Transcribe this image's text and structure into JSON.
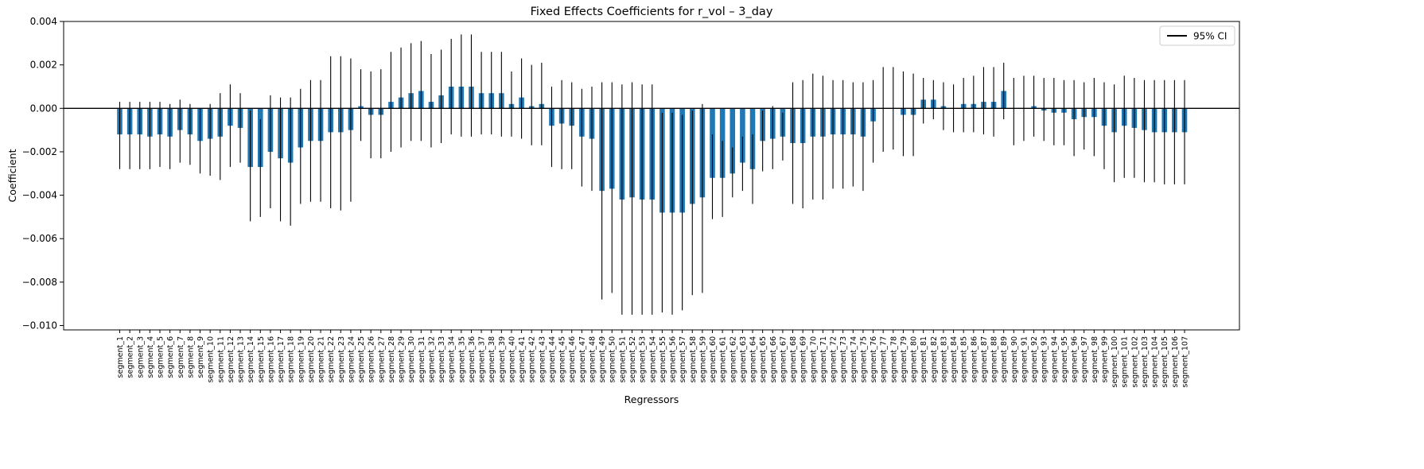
{
  "chart_data": {
    "type": "bar",
    "title": "Fixed Effects Coefficients for r_vol – 3_day",
    "xlabel": "Regressors",
    "ylabel": "Coefficient",
    "ylim": [
      -0.0102,
      0.004
    ],
    "yticks": [
      0.004,
      0.002,
      0.0,
      -0.002,
      -0.004,
      -0.006,
      -0.008,
      -0.01
    ],
    "ytick_labels": [
      "0.004",
      "0.002",
      "0.000",
      "−0.002",
      "−0.004",
      "−0.006",
      "−0.008",
      "−0.010"
    ],
    "grid": false,
    "zero_line": true,
    "legend": {
      "label": "95% CI",
      "placement": "top-right"
    },
    "bar_color": "#1f77b4",
    "ci_color": "#000000",
    "categories": [
      "segment_1",
      "segment_2",
      "segment_3",
      "segment_4",
      "segment_5",
      "segment_6",
      "segment_7",
      "segment_8",
      "segment_9",
      "segment_10",
      "segment_11",
      "segment_12",
      "segment_13",
      "segment_14",
      "segment_15",
      "segment_16",
      "segment_17",
      "segment_18",
      "segment_19",
      "segment_20",
      "segment_21",
      "segment_22",
      "segment_23",
      "segment_24",
      "segment_25",
      "segment_26",
      "segment_27",
      "segment_28",
      "segment_29",
      "segment_30",
      "segment_31",
      "segment_32",
      "segment_33",
      "segment_34",
      "segment_35",
      "segment_36",
      "segment_37",
      "segment_38",
      "segment_39",
      "segment_40",
      "segment_41",
      "segment_42",
      "segment_43",
      "segment_44",
      "segment_45",
      "segment_46",
      "segment_47",
      "segment_48",
      "segment_49",
      "segment_50",
      "segment_51",
      "segment_52",
      "segment_53",
      "segment_54",
      "segment_55",
      "segment_56",
      "segment_57",
      "segment_58",
      "segment_59",
      "segment_60",
      "segment_61",
      "segment_62",
      "segment_63",
      "segment_64",
      "segment_65",
      "segment_66",
      "segment_67",
      "segment_68",
      "segment_69",
      "segment_70",
      "segment_71",
      "segment_72",
      "segment_73",
      "segment_74",
      "segment_75",
      "segment_76",
      "segment_77",
      "segment_78",
      "segment_79",
      "segment_80",
      "segment_81",
      "segment_82",
      "segment_83",
      "segment_84",
      "segment_85",
      "segment_86",
      "segment_87",
      "segment_88",
      "segment_89",
      "segment_90",
      "segment_91",
      "segment_92",
      "segment_93",
      "segment_94",
      "segment_95",
      "segment_96",
      "segment_97",
      "segment_98",
      "segment_99",
      "segment_100",
      "segment_101",
      "segment_102",
      "segment_103",
      "segment_104",
      "segment_105",
      "segment_106",
      "segment_107"
    ],
    "values": [
      -0.0012,
      -0.0012,
      -0.0012,
      -0.0013,
      -0.0012,
      -0.0013,
      -0.001,
      -0.0012,
      -0.0015,
      -0.0014,
      -0.0013,
      -0.0008,
      -0.0009,
      -0.0027,
      -0.0027,
      -0.002,
      -0.0023,
      -0.0025,
      -0.0018,
      -0.0015,
      -0.0015,
      -0.0011,
      -0.0011,
      -0.001,
      0.0001,
      -0.0003,
      -0.0003,
      0.0003,
      0.0005,
      0.0007,
      0.0008,
      0.0003,
      0.0006,
      0.001,
      0.001,
      0.001,
      0.0007,
      0.0007,
      0.0007,
      0.0002,
      0.0005,
      0.0001,
      0.0002,
      -0.0008,
      -0.0007,
      -0.0008,
      -0.0013,
      -0.0014,
      -0.0038,
      -0.0037,
      -0.0042,
      -0.0041,
      -0.0042,
      -0.0042,
      -0.0048,
      -0.0048,
      -0.0048,
      -0.0044,
      -0.0041,
      -0.0032,
      -0.0032,
      -0.003,
      -0.0025,
      -0.0028,
      -0.0015,
      -0.0014,
      -0.0013,
      -0.0016,
      -0.0016,
      -0.0013,
      -0.0013,
      -0.0012,
      -0.0012,
      -0.0012,
      -0.0013,
      -0.0006,
      0.0,
      0.0,
      -0.0003,
      -0.0003,
      0.0004,
      0.0004,
      0.0001,
      0.0,
      0.0002,
      0.0002,
      0.0003,
      0.0003,
      0.0008,
      0.0,
      0.0,
      0.0001,
      -0.0001,
      -0.0002,
      -0.0002,
      -0.0005,
      -0.0004,
      -0.0004,
      -0.0008,
      -0.0011,
      -0.0008,
      -0.0009,
      -0.001,
      -0.0011,
      -0.0011,
      -0.0011,
      -0.0011
    ],
    "ci_lower": [
      -0.0028,
      -0.0028,
      -0.0028,
      -0.0028,
      -0.0027,
      -0.0028,
      -0.0025,
      -0.0026,
      -0.003,
      -0.0031,
      -0.0033,
      -0.0027,
      -0.0025,
      -0.0052,
      -0.005,
      -0.0046,
      -0.0052,
      -0.0054,
      -0.0044,
      -0.0043,
      -0.0043,
      -0.0046,
      -0.0047,
      -0.0043,
      -0.0015,
      -0.0023,
      -0.0023,
      -0.002,
      -0.0018,
      -0.0015,
      -0.0015,
      -0.0018,
      -0.0016,
      -0.0012,
      -0.0013,
      -0.0013,
      -0.0012,
      -0.0012,
      -0.0013,
      -0.0013,
      -0.0014,
      -0.0017,
      -0.0017,
      -0.0027,
      -0.0028,
      -0.0028,
      -0.0036,
      -0.0038,
      -0.0088,
      -0.0085,
      -0.0095,
      -0.0095,
      -0.0095,
      -0.0095,
      -0.0094,
      -0.0095,
      -0.0093,
      -0.0086,
      -0.0085,
      -0.0051,
      -0.005,
      -0.0041,
      -0.0038,
      -0.0044,
      -0.0029,
      -0.0028,
      -0.0024,
      -0.0044,
      -0.0046,
      -0.0042,
      -0.0042,
      -0.0037,
      -0.0037,
      -0.0036,
      -0.0038,
      -0.0025,
      -0.002,
      -0.0019,
      -0.0022,
      -0.0022,
      -0.0007,
      -0.0005,
      -0.001,
      -0.0011,
      -0.0011,
      -0.0011,
      -0.0012,
      -0.0013,
      -0.0005,
      -0.0017,
      -0.0015,
      -0.0013,
      -0.0015,
      -0.0017,
      -0.0017,
      -0.0022,
      -0.0019,
      -0.0022,
      -0.0028,
      -0.0034,
      -0.0032,
      -0.0032,
      -0.0034,
      -0.0034,
      -0.0035,
      -0.0035,
      -0.0035
    ],
    "ci_upper": [
      0.0003,
      0.0003,
      0.0003,
      0.0003,
      0.0003,
      0.0002,
      0.0004,
      0.0002,
      0.0,
      0.0002,
      0.0007,
      0.0011,
      0.0007,
      -0.0001,
      -0.0005,
      0.0006,
      0.0005,
      0.0005,
      0.0009,
      0.0013,
      0.0013,
      0.0024,
      0.0024,
      0.0023,
      0.0018,
      0.0017,
      0.0018,
      0.0026,
      0.0028,
      0.003,
      0.0031,
      0.0025,
      0.0027,
      0.0032,
      0.0034,
      0.0034,
      0.0026,
      0.0026,
      0.0026,
      0.0017,
      0.0023,
      0.002,
      0.0021,
      0.001,
      0.0013,
      0.0012,
      0.0009,
      0.001,
      0.0012,
      0.0012,
      0.0011,
      0.0012,
      0.0011,
      0.0011,
      -0.0002,
      -0.0002,
      -0.0003,
      -0.0001,
      0.0002,
      -0.0012,
      -0.0015,
      -0.0018,
      -0.0013,
      -0.0012,
      -0.0001,
      0.0001,
      -0.0002,
      0.0012,
      0.0013,
      0.0016,
      0.0015,
      0.0013,
      0.0013,
      0.0012,
      0.0012,
      0.0013,
      0.0019,
      0.0019,
      0.0017,
      0.0016,
      0.0014,
      0.0013,
      0.0012,
      0.0011,
      0.0014,
      0.0015,
      0.0019,
      0.0019,
      0.0021,
      0.0014,
      0.0015,
      0.0015,
      0.0014,
      0.0014,
      0.0013,
      0.0013,
      0.0012,
      0.0014,
      0.0012,
      0.0011,
      0.0015,
      0.0014,
      0.0013,
      0.0013,
      0.0013,
      0.0013,
      0.0013
    ]
  }
}
